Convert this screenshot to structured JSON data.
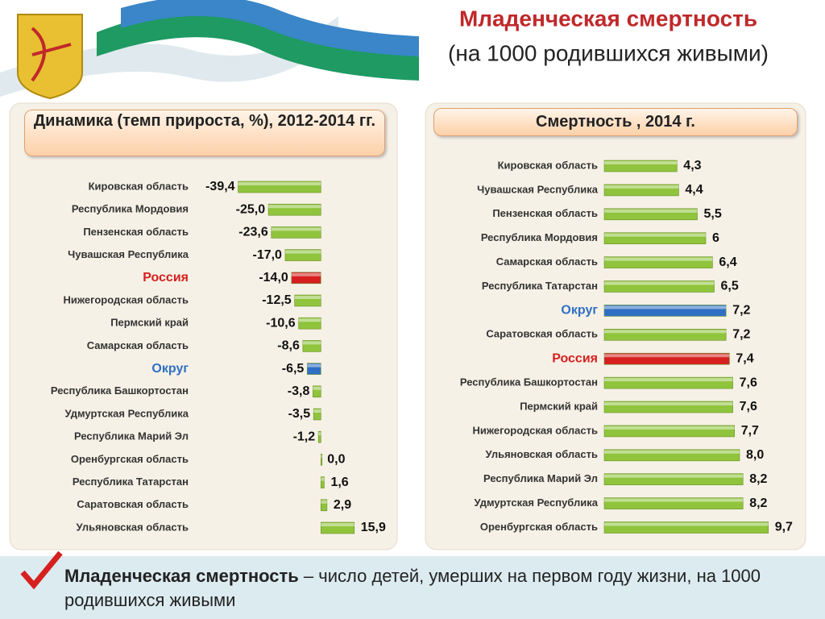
{
  "header": {
    "title": "Младенческая смертность",
    "subtitle": "(на 1000 родившихся живыми)"
  },
  "chart_data": [
    {
      "type": "hbar",
      "title": "Динамика (темп прироста, %), 2012-2014 гг.",
      "categories": [
        "Кировская область",
        "Республика Мордовия",
        "Пензенская область",
        "Чувашская Республика",
        "Россия",
        "Нижегородская область",
        "Пермский край",
        "Самарская область",
        "Округ",
        "Республика Башкортостан",
        "Удмуртская Республика",
        "Республика Марий Эл",
        "Оренбургская область",
        "Республика Татарстан",
        "Саратовская область",
        "Ульяновская область"
      ],
      "values": [
        -39.4,
        -25.0,
        -23.6,
        -17.0,
        -14.0,
        -12.5,
        -10.6,
        -8.6,
        -6.5,
        -3.8,
        -3.5,
        -1.2,
        0.0,
        1.6,
        2.9,
        15.9
      ],
      "value_labels": [
        "-39,4",
        "-25,0",
        "-23,6",
        "-17,0",
        "-14,0",
        "-12,5",
        "-10,6",
        "-8,6",
        "-6,5",
        "-3,8",
        "-3,5",
        "-1,2",
        "0,0",
        "1,6",
        "2,9",
        "15,9"
      ],
      "colors": [
        "#8fc43c",
        "#8fc43c",
        "#8fc43c",
        "#8fc43c",
        "#d62020",
        "#8fc43c",
        "#8fc43c",
        "#8fc43c",
        "#2e6fc4",
        "#8fc43c",
        "#8fc43c",
        "#8fc43c",
        "#8fc43c",
        "#8fc43c",
        "#8fc43c",
        "#8fc43c"
      ],
      "xlim": [
        -40,
        16
      ]
    },
    {
      "type": "hbar",
      "title": "Смертность , 2014 г.",
      "categories": [
        "Кировская область",
        "Чувашская Республика",
        "Пензенская область",
        "Республика Мордовия",
        "Самарская область",
        "Республика Татарстан",
        "Округ",
        "Саратовская область",
        "Россия",
        "Республика Башкортостан",
        "Пермский край",
        "Нижегородская область",
        "Ульяновская область",
        "Республика Марий Эл",
        "Удмуртская Республика",
        "Оренбургская область"
      ],
      "values": [
        4.3,
        4.4,
        5.5,
        6,
        6.4,
        6.5,
        7.2,
        7.2,
        7.4,
        7.6,
        7.6,
        7.7,
        8.0,
        8.2,
        8.2,
        9.7
      ],
      "value_labels": [
        "4,3",
        "4,4",
        "5,5",
        "6",
        "6,4",
        "6,5",
        "7,2",
        "7,2",
        "7,4",
        "7,6",
        "7,6",
        "7,7",
        "8,0",
        "8,2",
        "8,2",
        "9,7"
      ],
      "colors": [
        "#8fc43c",
        "#8fc43c",
        "#8fc43c",
        "#8fc43c",
        "#8fc43c",
        "#8fc43c",
        "#2e6fc4",
        "#8fc43c",
        "#d62020",
        "#8fc43c",
        "#8fc43c",
        "#8fc43c",
        "#8fc43c",
        "#8fc43c",
        "#8fc43c",
        "#8fc43c"
      ],
      "xlim": [
        0,
        10
      ]
    }
  ],
  "footer": {
    "term": "Младенческая смертность",
    "definition": " – число детей, умерших на первом году жизни, на 1000 родившихся живыми"
  }
}
